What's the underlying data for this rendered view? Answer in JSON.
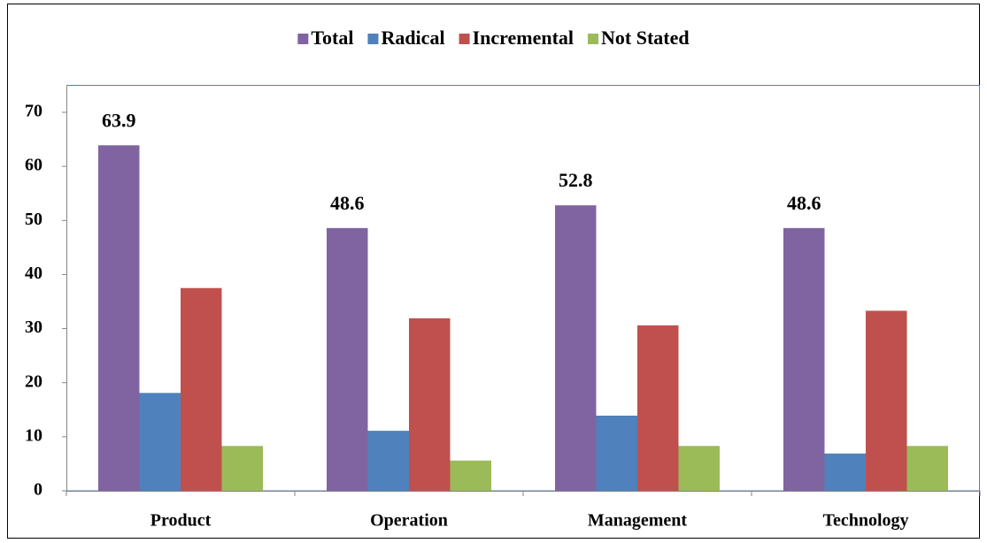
{
  "chart_data": {
    "type": "bar",
    "categories": [
      "Product",
      "Operation",
      "Management",
      "Technology"
    ],
    "series": [
      {
        "name": "Total",
        "color": "#8064a2",
        "values": [
          63.9,
          48.6,
          52.8,
          48.6
        ],
        "data_labels": true
      },
      {
        "name": "Radical",
        "color": "#4f81bd",
        "values": [
          18.1,
          11.1,
          13.9,
          6.9
        ]
      },
      {
        "name": "Incremental",
        "color": "#c0504d",
        "values": [
          37.5,
          31.9,
          30.6,
          33.3
        ]
      },
      {
        "name": "Not Stated",
        "color": "#9bbb59",
        "values": [
          8.3,
          5.6,
          8.3,
          8.3
        ]
      }
    ],
    "ylim": [
      0,
      70
    ],
    "yticks": [
      0,
      10,
      20,
      30,
      40,
      50,
      60,
      70
    ],
    "grid": false,
    "legend": "top"
  }
}
